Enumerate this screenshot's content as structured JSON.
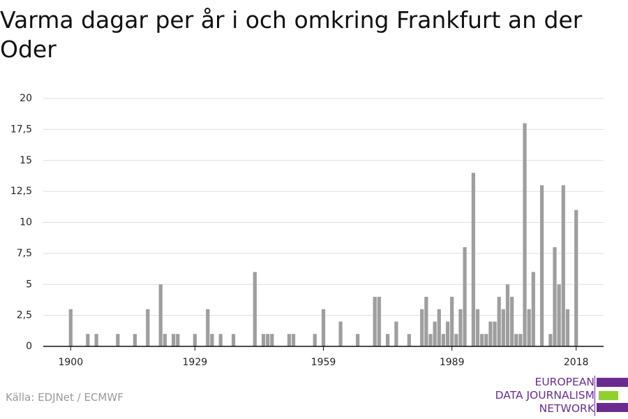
{
  "chart_data": {
    "type": "bar",
    "title": "Varma dagar per år i och omkring Frankfurt an der Oder",
    "source": "Källa: EDJNet / ECMWF",
    "logo": [
      "EUROPEAN",
      "DATA JOURNALISM",
      "NETWORK"
    ],
    "color": "#9e9e9e",
    "x": [
      1900,
      1904,
      1906,
      1911,
      1915,
      1918,
      1921,
      1922,
      1924,
      1925,
      1929,
      1932,
      1933,
      1935,
      1938,
      1943,
      1945,
      1946,
      1947,
      1951,
      1952,
      1957,
      1959,
      1963,
      1967,
      1971,
      1972,
      1974,
      1976,
      1979,
      1982,
      1983,
      1984,
      1985,
      1986,
      1987,
      1988,
      1989,
      1990,
      1991,
      1992,
      1994,
      1995,
      1996,
      1997,
      1998,
      1999,
      2000,
      2001,
      2002,
      2003,
      2004,
      2005,
      2006,
      2007,
      2008,
      2010,
      2012,
      2013,
      2014,
      2015,
      2016,
      2018
    ],
    "values": [
      3,
      1,
      1,
      1,
      1,
      3,
      5,
      1,
      1,
      1,
      1,
      3,
      1,
      1,
      1,
      6,
      1,
      1,
      1,
      1,
      1,
      1,
      3,
      2,
      1,
      4,
      4,
      1,
      2,
      1,
      3,
      4,
      1,
      2,
      3,
      1,
      2,
      4,
      1,
      3,
      8,
      14,
      3,
      1,
      1,
      2,
      2,
      4,
      3,
      5,
      4,
      1,
      1,
      18,
      3,
      6,
      13,
      1,
      8,
      5,
      13,
      3,
      11
    ],
    "xlim": [
      1893.6,
      2024.4
    ],
    "xticks": [
      1900,
      1929,
      1959,
      1989,
      2018
    ],
    "ylim": [
      0,
      20
    ],
    "yticks": [
      0,
      {
        "value": 2.5,
        "label": "2,5"
      },
      5,
      {
        "value": 7.5,
        "label": "7,5"
      },
      10,
      {
        "value": 12.5,
        "label": "12,5"
      },
      15,
      {
        "value": 17.5,
        "label": "17,5"
      },
      20
    ],
    "grid": true
  }
}
